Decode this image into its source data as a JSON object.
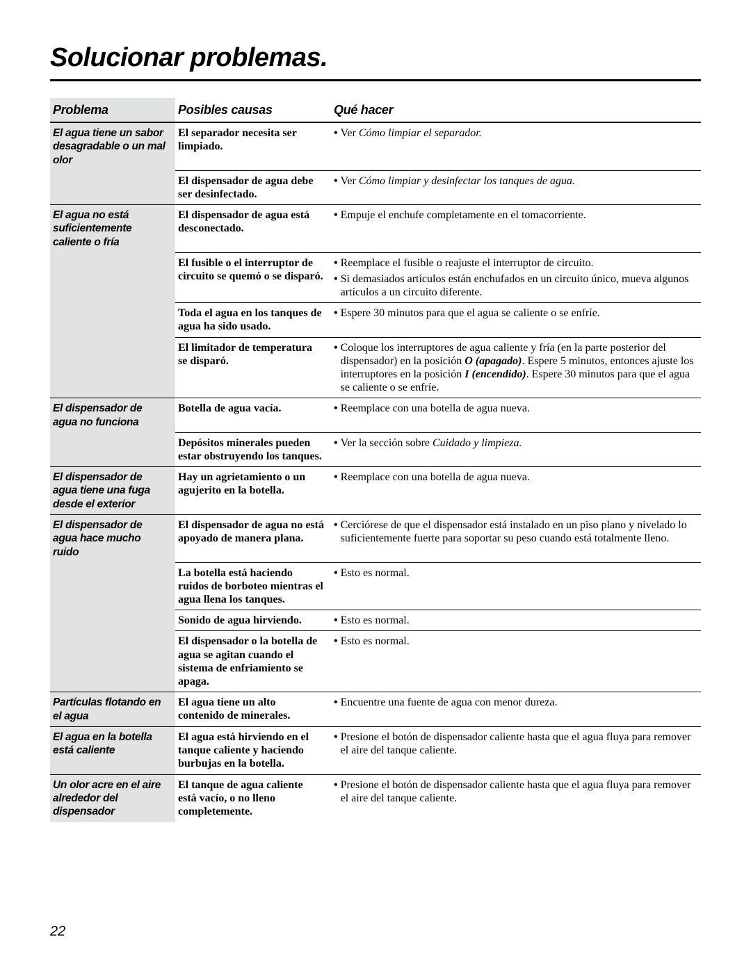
{
  "page_title": "Solucionar problemas.",
  "page_number": "22",
  "columns": {
    "problem": "Problema",
    "cause": "Posibles causas",
    "action": "Qué hacer"
  },
  "colors": {
    "background": "#ffffff",
    "shade": "#e1e2e4",
    "rule": "#000000"
  },
  "rows": [
    {
      "problem": "El agua tiene un sabor desagradable o un mal olor",
      "cause": "El separador necesita ser limpiado.",
      "actions": [
        {
          "segments": [
            {
              "t": "Ver ",
              "style": ""
            },
            {
              "t": "Cómo limpiar el separador.",
              "style": "it"
            }
          ]
        }
      ]
    },
    {
      "continuation": true,
      "cause": "El dispensador de agua debe ser desinfectado.",
      "actions": [
        {
          "segments": [
            {
              "t": "Ver ",
              "style": ""
            },
            {
              "t": "Cómo limpiar y desinfectar los tanques de agua.",
              "style": "it"
            }
          ]
        }
      ]
    },
    {
      "problem": "El agua no está suficientemente caliente o fría",
      "cause": "El dispensador de agua está desconectado.",
      "actions": [
        {
          "segments": [
            {
              "t": "Empuje el enchufe completamente en el tomacorriente."
            }
          ]
        }
      ]
    },
    {
      "continuation": true,
      "cause": "El fusible o el interruptor de circuito se quemó o se disparó.",
      "actions": [
        {
          "segments": [
            {
              "t": "Reemplace el fusible o reajuste el interruptor de circuito."
            }
          ]
        },
        {
          "segments": [
            {
              "t": "Si demasiados artículos están enchufados en un circuito único, mueva algunos artículos a un circuito diferente."
            }
          ]
        }
      ]
    },
    {
      "continuation": true,
      "cause": "Toda el agua en los tanques de agua ha sido usado.",
      "actions": [
        {
          "segments": [
            {
              "t": "Espere 30 minutos para que el agua se caliente o se enfríe."
            }
          ]
        }
      ]
    },
    {
      "continuation": true,
      "cause": "El limitador de temperatura se disparó.",
      "actions": [
        {
          "segments": [
            {
              "t": "Coloque los interruptores de agua caliente y fría (en la parte posterior del dispensador) en la posición "
            },
            {
              "t": "O (apagado)",
              "style": "it-bold"
            },
            {
              "t": ". Espere 5 minutos, entonces ajuste los interruptores en la posición "
            },
            {
              "t": "I (encendido)",
              "style": "it-bold"
            },
            {
              "t": ". Espere 30 minutos para que el agua se caliente o se enfríe."
            }
          ]
        }
      ]
    },
    {
      "problem": "El dispensador de agua no funciona",
      "cause": "Botella de agua vacía.",
      "actions": [
        {
          "segments": [
            {
              "t": "Reemplace con una botella de agua nueva."
            }
          ]
        }
      ]
    },
    {
      "continuation": true,
      "cause": "Depósitos minerales pueden estar obstruyendo los tanques.",
      "actions": [
        {
          "segments": [
            {
              "t": "Ver la sección sobre "
            },
            {
              "t": "Cuidado y limpieza.",
              "style": "it"
            }
          ]
        }
      ]
    },
    {
      "problem": "El dispensador de agua tiene una fuga desde el exterior",
      "cause": "Hay un agrietamiento o un agujerito en la botella.",
      "actions": [
        {
          "segments": [
            {
              "t": "Reemplace con una botella de agua nueva."
            }
          ]
        }
      ]
    },
    {
      "problem": "El dispensador de agua hace mucho ruido",
      "cause": "El dispensador de agua no está apoyado de manera plana.",
      "actions": [
        {
          "segments": [
            {
              "t": "Cerciórese de que el dispensador está instalado en un piso plano y nivelado lo suficientemente fuerte para soportar su peso cuando está totalmente lleno."
            }
          ]
        }
      ]
    },
    {
      "continuation": true,
      "cause": "La botella está haciendo ruidos de borboteo mientras el agua llena los tanques.",
      "actions": [
        {
          "segments": [
            {
              "t": "Esto es normal."
            }
          ]
        }
      ]
    },
    {
      "continuation": true,
      "cause": "Sonido de agua hirviendo.",
      "actions": [
        {
          "segments": [
            {
              "t": "Esto es normal."
            }
          ]
        }
      ]
    },
    {
      "continuation": true,
      "cause": "El dispensador o la botella de agua se agitan cuando el sistema de enfriamiento se apaga.",
      "actions": [
        {
          "segments": [
            {
              "t": "Esto es normal."
            }
          ]
        }
      ]
    },
    {
      "problem": "Partículas flotando en el agua",
      "cause": "El agua tiene un alto contenido de minerales.",
      "actions": [
        {
          "segments": [
            {
              "t": "Encuentre una fuente de agua con menor dureza."
            }
          ]
        }
      ]
    },
    {
      "problem": "El agua en la botella está caliente",
      "cause": "El agua está hirviendo en el tanque caliente y haciendo burbujas en la botella.",
      "actions": [
        {
          "segments": [
            {
              "t": "Presione el botón de dispensador caliente hasta que el agua fluya para remover el aire del tanque caliente."
            }
          ]
        }
      ]
    },
    {
      "problem": "Un olor acre en el aire  alrededor del dispensador",
      "cause": "El tanque de agua caliente está vacío, o no lleno completemente.",
      "actions": [
        {
          "segments": [
            {
              "t": "Presione el botón de dispensador caliente hasta que el agua fluya para remover el aire del tanque caliente."
            }
          ]
        }
      ]
    }
  ]
}
